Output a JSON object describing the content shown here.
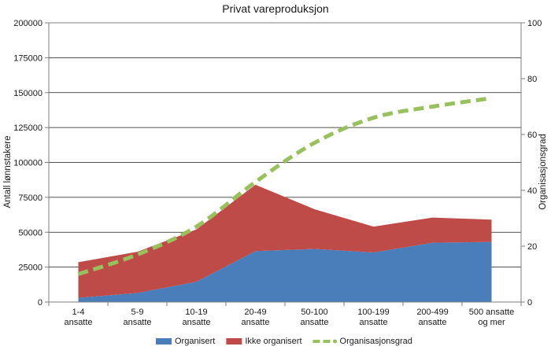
{
  "chart_data": {
    "type": "area",
    "title": "Privat vareproduksjon",
    "categories": [
      [
        "1-4",
        "ansatte"
      ],
      [
        "5-9",
        "ansatte"
      ],
      [
        "10-19",
        "ansatte"
      ],
      [
        "20-49",
        "ansatte"
      ],
      [
        "50-100",
        "ansatte"
      ],
      [
        "100-199",
        "ansatte"
      ],
      [
        "200-499",
        "ansatte"
      ],
      [
        "500 ansatte",
        "og mer"
      ]
    ],
    "ylabel": "Antall lønnstakere",
    "y2label": "Organisasjonsgrad",
    "ylim": [
      0,
      200000
    ],
    "y2lim": [
      0,
      100
    ],
    "yticks": [
      "0",
      "25000",
      "50000",
      "75000",
      "100000",
      "125000",
      "150000",
      "175000",
      "200000"
    ],
    "y2ticks": [
      "0",
      "20",
      "40",
      "60",
      "80",
      "100"
    ],
    "grid": true,
    "legend_position": "bottom",
    "stacked": true,
    "series": [
      {
        "name": "Organisert",
        "kind": "area",
        "axis": "left",
        "color": "#4a7ebb",
        "values": [
          3000,
          6500,
          14500,
          36500,
          38000,
          35500,
          42500,
          43000
        ]
      },
      {
        "name": "Ikke organisert",
        "kind": "area",
        "axis": "left",
        "color": "#be4b48",
        "values": [
          25500,
          29500,
          37500,
          47500,
          28500,
          18500,
          18000,
          16000
        ]
      },
      {
        "name": "Organisasjonsgrad",
        "kind": "line",
        "axis": "right",
        "color": "#98c05c",
        "dashed": true,
        "values": [
          10,
          17,
          27,
          43,
          57,
          66,
          70,
          73
        ]
      }
    ]
  }
}
